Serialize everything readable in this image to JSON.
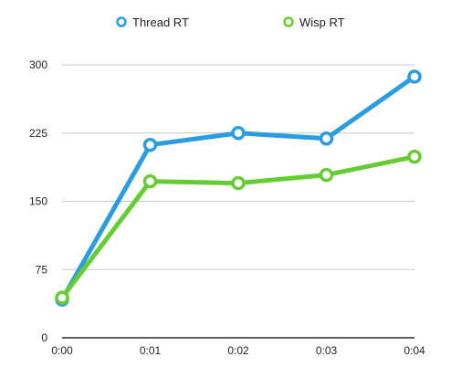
{
  "chart_data": {
    "type": "line",
    "title": "",
    "xlabel": "",
    "ylabel": "",
    "categories": [
      "0:00",
      "0:01",
      "0:02",
      "0:03",
      "0:04"
    ],
    "ylim": [
      0,
      300
    ],
    "yticks": [
      "0",
      "75",
      "150",
      "225",
      "300"
    ],
    "grid": true,
    "legend": "top-center",
    "series": [
      {
        "name": "Thread RT",
        "color": "#2a9de0",
        "values": [
          42,
          212,
          225,
          219,
          287
        ]
      },
      {
        "name": "Wisp RT",
        "color": "#66cc33",
        "values": [
          44,
          172,
          170,
          179,
          199
        ]
      }
    ]
  }
}
